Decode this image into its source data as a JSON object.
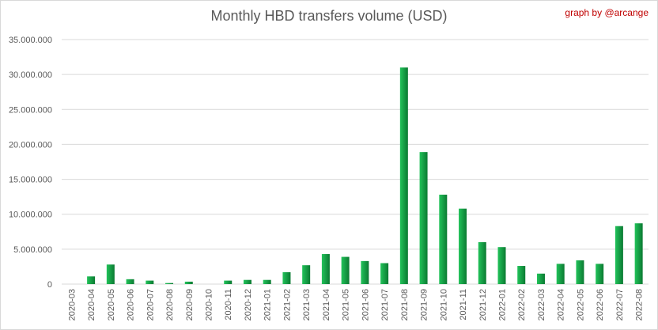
{
  "chart_data": {
    "type": "bar",
    "title": "Monthly HBD transfers volume (USD)",
    "credit": "graph by @arcange",
    "xlabel": "",
    "ylabel": "",
    "ylim": [
      0,
      35000000
    ],
    "yticks": [
      "0",
      "5.000.000",
      "10.000.000",
      "15.000.000",
      "20.000.000",
      "25.000.000",
      "30.000.000",
      "35.000.000"
    ],
    "grid": true,
    "legend": "none",
    "colors": {
      "bar_light": "#22c35a",
      "bar_dark": "#0b7a32",
      "grid": "#d9d9d9",
      "text": "#595959"
    },
    "categories": [
      "2020-03",
      "2020-04",
      "2020-05",
      "2020-06",
      "2020-07",
      "2020-08",
      "2020-09",
      "2020-10",
      "2020-11",
      "2020-12",
      "2021-01",
      "2021-02",
      "2021-03",
      "2021-04",
      "2021-05",
      "2021-06",
      "2021-07",
      "2021-08",
      "2021-09",
      "2021-10",
      "2021-11",
      "2021-12",
      "2022-01",
      "2022-02",
      "2022-03",
      "2022-04",
      "2022-05",
      "2022-06",
      "2022-07",
      "2022-08"
    ],
    "values": [
      0,
      1100000,
      2800000,
      700000,
      500000,
      150000,
      350000,
      0,
      500000,
      600000,
      600000,
      1700000,
      2700000,
      4300000,
      3900000,
      3300000,
      3000000,
      31000000,
      18900000,
      12800000,
      10800000,
      6000000,
      5300000,
      2600000,
      1500000,
      2900000,
      3400000,
      2900000,
      8300000,
      8700000
    ]
  }
}
